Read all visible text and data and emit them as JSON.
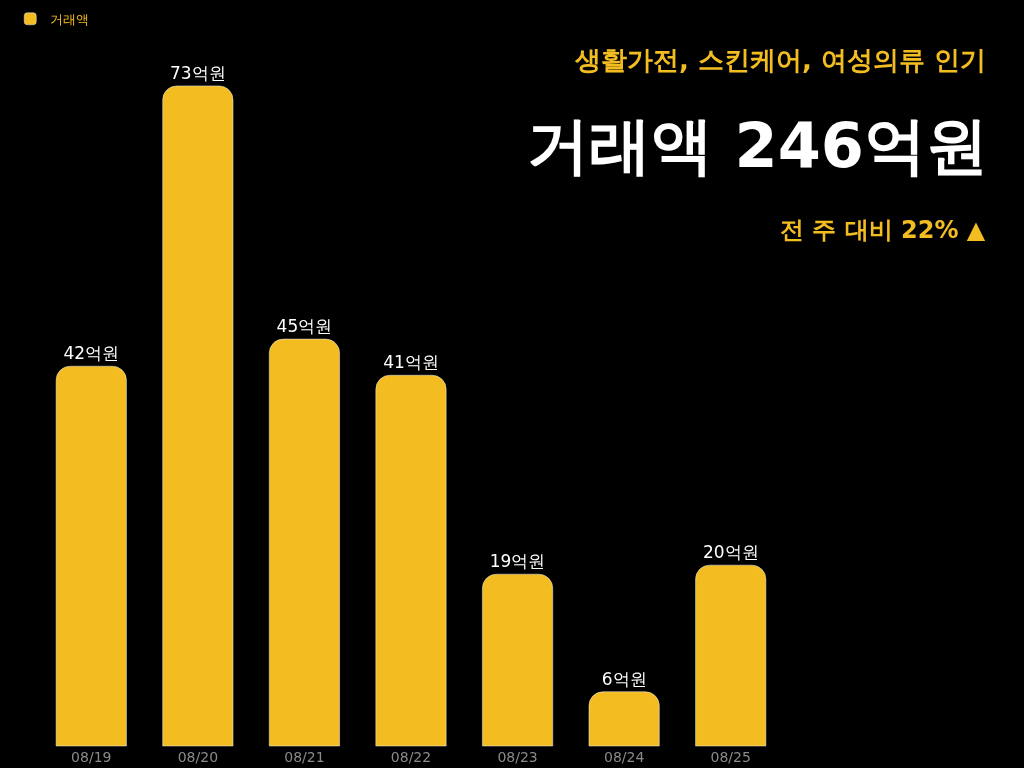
{
  "chart_data": {
    "type": "bar",
    "title": "거래액 246억원",
    "subtitle": "생활가전, 스킨케어, 여성의류 인기",
    "annotations": [
      "전 주 대비 22% ▲"
    ],
    "categories": [
      "08/19",
      "08/20",
      "08/21",
      "08/22",
      "08/23",
      "08/24",
      "08/25"
    ],
    "series": [
      {
        "name": "거래액",
        "color": "#f3bd22",
        "values": [
          42,
          73,
          45,
          41,
          19,
          6,
          20
        ],
        "value_labels": [
          "42억원",
          "73억원",
          "45억원",
          "41억원",
          "19억원",
          "6억원",
          "20억원"
        ]
      }
    ],
    "tick_labels": "x",
    "grid": false,
    "legend": "top left"
  }
}
